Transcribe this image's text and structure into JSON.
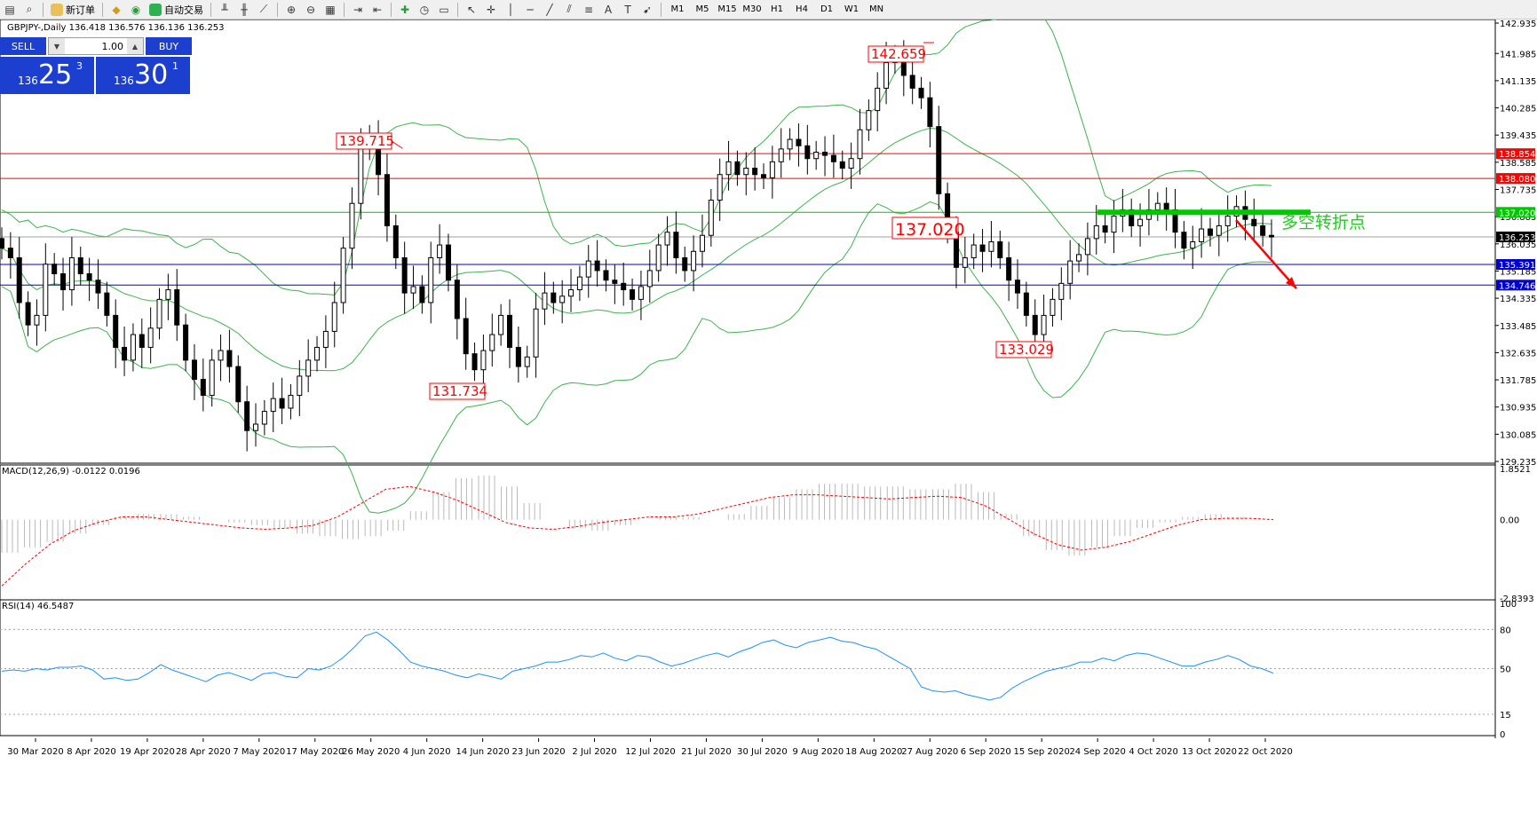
{
  "toolbar": {
    "new_order": "新订单",
    "auto_trading": "自动交易",
    "timeframes": [
      "M1",
      "M5",
      "M15",
      "M30",
      "H1",
      "H4",
      "D1",
      "W1",
      "MN"
    ]
  },
  "symbol_info": "GBPJPY-,Daily  136.418 136.576 136.136 136.253",
  "trade_panel": {
    "sell_label": "SELL",
    "buy_label": "BUY",
    "volume": "1.00",
    "sell_big": "136",
    "sell_digits": "25",
    "sell_frac": "3",
    "buy_big": "136",
    "buy_digits": "30",
    "buy_frac": "1"
  },
  "colors": {
    "bull": "#ffffff",
    "bear": "#000000",
    "bands": "#3cb44b",
    "support": "#0000cc",
    "resistance": "#ff0000",
    "pivot": "#00c800",
    "macd_signal": "#ff0000",
    "rsi": "#1e90ff",
    "label_box": "#ff0000"
  },
  "chart_data": [
    {
      "type": "candlestick",
      "title": "GBPJPY-,Daily",
      "ylim": [
        129.235,
        142.935
      ],
      "y_ticks": [
        "142.935",
        "141.985",
        "141.135",
        "140.285",
        "139.435",
        "138.585",
        "137.735",
        "136.885",
        "136.035",
        "135.185",
        "134.335",
        "133.485",
        "132.635",
        "131.785",
        "130.935",
        "130.085",
        "129.235"
      ],
      "x_ticks": [
        "30 Mar 2020",
        "8 Apr 2020",
        "19 Apr 2020",
        "28 Apr 2020",
        "7 May 2020",
        "17 May 2020",
        "26 May 2020",
        "4 Jun 2020",
        "14 Jun 2020",
        "23 Jun 2020",
        "2 Jul 2020",
        "12 Jul 2020",
        "21 Jul 2020",
        "30 Jul 2020",
        "9 Aug 2020",
        "18 Aug 2020",
        "27 Aug 2020",
        "6 Sep 2020",
        "15 Sep 2020",
        "24 Sep 2020",
        "4 Oct 2020",
        "13 Oct 2020",
        "22 Oct 2020"
      ],
      "close_path": [
        135.9,
        135.6,
        134.2,
        133.5,
        133.8,
        135.4,
        135.1,
        134.6,
        135.6,
        135.1,
        134.9,
        134.5,
        133.8,
        132.8,
        132.4,
        133.2,
        132.8,
        133.4,
        134.3,
        134.6,
        133.5,
        132.4,
        131.8,
        131.3,
        132.4,
        132.7,
        132.2,
        131.1,
        130.2,
        130.4,
        130.8,
        131.2,
        130.9,
        131.3,
        131.9,
        132.4,
        132.8,
        133.3,
        134.2,
        135.9,
        137.3,
        139.0,
        139.4,
        138.2,
        136.6,
        135.6,
        134.5,
        134.7,
        134.2,
        135.6,
        136.0,
        134.9,
        133.7,
        132.6,
        132.1,
        132.7,
        133.2,
        133.8,
        132.8,
        132.2,
        132.5,
        134.0,
        134.5,
        134.2,
        134.4,
        134.6,
        135.0,
        135.5,
        135.2,
        134.9,
        134.8,
        134.6,
        134.3,
        134.7,
        135.2,
        136.0,
        136.4,
        135.6,
        135.2,
        135.8,
        136.3,
        137.4,
        138.2,
        138.6,
        138.2,
        138.4,
        138.2,
        138.1,
        138.6,
        139.0,
        139.3,
        139.1,
        138.7,
        138.9,
        138.8,
        138.6,
        138.4,
        138.7,
        139.6,
        140.2,
        140.9,
        141.7,
        141.9,
        141.3,
        140.9,
        140.6,
        139.7,
        137.6,
        136.4,
        135.3,
        135.6,
        136.0,
        135.8,
        136.1,
        135.6,
        134.9,
        134.5,
        133.8,
        133.2,
        133.8,
        134.3,
        134.8,
        135.5,
        135.7,
        136.2,
        136.6,
        136.4,
        136.9,
        137.1,
        136.6,
        136.8,
        137.1,
        137.3,
        137.1,
        136.4,
        135.9,
        136.1,
        136.5,
        136.3,
        136.6,
        136.9,
        137.2,
        136.8,
        136.6,
        136.3,
        136.25
      ],
      "price_labels": [
        {
          "text": "142.659",
          "value": 142.659
        },
        {
          "text": "139.715",
          "value": 139.715
        },
        {
          "text": "137.020",
          "value": 137.02
        },
        {
          "text": "131.734",
          "value": 131.734
        },
        {
          "text": "133.029",
          "value": 133.029
        }
      ],
      "hlines": [
        {
          "value": 138.854,
          "label": "138.854",
          "kind": "resistance"
        },
        {
          "value": 138.08,
          "label": "138.080",
          "kind": "resistance"
        },
        {
          "value": 137.02,
          "label": "137.020",
          "kind": "pivot"
        },
        {
          "value": 136.253,
          "label": "136.253",
          "kind": "bid"
        },
        {
          "value": 135.391,
          "label": "135.391",
          "kind": "support"
        },
        {
          "value": 134.746,
          "label": "134.746",
          "kind": "support"
        }
      ],
      "annotation": "多空转折点"
    },
    {
      "type": "bar",
      "title": "MACD(12,26,9) -0.0122 0.0196",
      "ylim": [
        -2.8393,
        1.8521
      ],
      "y_ticks": [
        "1.8521",
        "0.00",
        "-2.8393"
      ],
      "macd": [
        -1.2,
        -1.0,
        -0.8,
        -0.5,
        -0.2,
        0.1,
        0.2,
        0.2,
        0.1,
        0.0,
        -0.1,
        -0.2,
        -0.3,
        -0.5,
        -0.6,
        -0.7,
        -0.6,
        -0.4,
        0.3,
        1.0,
        1.5,
        1.6,
        1.2,
        0.6,
        0.0,
        -0.3,
        -0.4,
        -0.2,
        0.0,
        0.1,
        0.1,
        0.0,
        0.2,
        0.5,
        0.8,
        1.1,
        1.3,
        1.3,
        1.2,
        1.2,
        1.1,
        1.1,
        1.3,
        1.0,
        0.2,
        -0.6,
        -1.1,
        -1.3,
        -1.0,
        -0.6,
        -0.3,
        -0.1,
        0.1,
        0.2,
        0.1,
        0.0
      ],
      "signal": [
        -2.4,
        -1.6,
        -0.9,
        -0.4,
        -0.1,
        0.1,
        0.1,
        0.0,
        -0.1,
        -0.2,
        -0.3,
        -0.35,
        -0.3,
        -0.2,
        0.1,
        0.6,
        1.1,
        1.2,
        1.0,
        0.7,
        0.3,
        -0.1,
        -0.3,
        -0.35,
        -0.25,
        -0.1,
        0.0,
        0.1,
        0.1,
        0.2,
        0.4,
        0.6,
        0.8,
        0.9,
        0.9,
        0.85,
        0.8,
        0.75,
        0.8,
        0.85,
        0.8,
        0.5,
        0.0,
        -0.5,
        -0.9,
        -1.1,
        -1.0,
        -0.8,
        -0.5,
        -0.2,
        0.0,
        0.05,
        0.05,
        0.0
      ]
    },
    {
      "type": "line",
      "title": "RSI(14) 46.5487",
      "ylim": [
        0,
        100
      ],
      "y_ticks": [
        "100",
        "80",
        "50",
        "15",
        "0"
      ],
      "rsi": [
        48,
        49,
        48,
        50,
        49,
        51,
        51,
        52,
        49,
        42,
        43,
        41,
        42,
        47,
        53,
        49,
        46,
        43,
        40,
        45,
        47,
        44,
        41,
        46,
        47,
        44,
        43,
        50,
        49,
        52,
        58,
        66,
        75,
        78,
        72,
        64,
        55,
        52,
        50,
        48,
        45,
        43,
        46,
        44,
        42,
        48,
        50,
        52,
        55,
        55,
        57,
        60,
        59,
        62,
        58,
        56,
        60,
        59,
        55,
        52,
        54,
        57,
        60,
        62,
        59,
        63,
        66,
        70,
        72,
        68,
        66,
        70,
        72,
        74,
        71,
        70,
        67,
        65,
        60,
        55,
        50,
        36,
        33,
        32,
        33,
        30,
        28,
        26,
        28,
        35,
        40,
        44,
        48,
        50,
        52,
        55,
        55,
        58,
        56,
        60,
        62,
        61,
        58,
        55,
        52,
        52,
        55,
        57,
        60,
        57,
        52,
        50,
        46.5
      ]
    }
  ]
}
